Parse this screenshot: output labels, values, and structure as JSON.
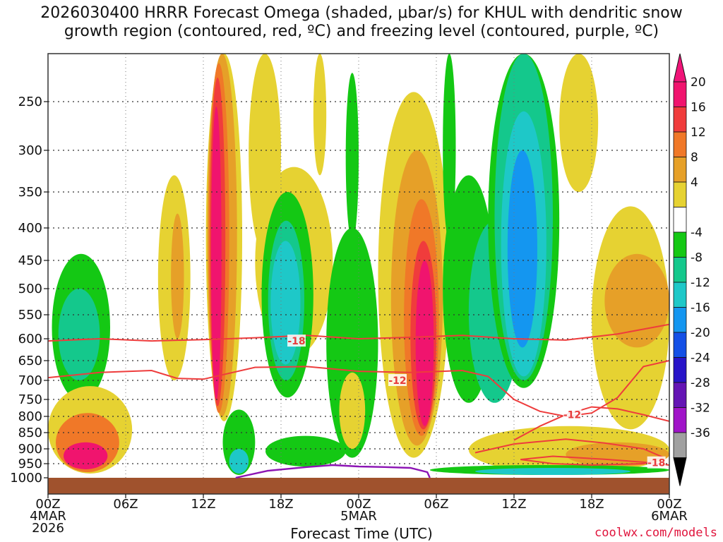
{
  "chart_data": {
    "type": "heatmap",
    "title_line1": "2026030400 HRRR Forecast Omega (shaded, μbar/s) for KHUL with dendritic snow",
    "title_line2": "growth region (contoured, red, ºC) and freezing level (contoured, purple, ºC)",
    "xlabel": "Forecast Time (UTC)",
    "credit": "coolwx.com/models",
    "x_ticks": [
      {
        "h": 0,
        "label": "00Z",
        "sub1": "4MAR",
        "sub2": "2026"
      },
      {
        "h": 6,
        "label": "06Z",
        "sub1": "",
        "sub2": ""
      },
      {
        "h": 12,
        "label": "12Z",
        "sub1": "",
        "sub2": ""
      },
      {
        "h": 18,
        "label": "18Z",
        "sub1": "",
        "sub2": ""
      },
      {
        "h": 24,
        "label": "00Z",
        "sub1": "5MAR",
        "sub2": ""
      },
      {
        "h": 30,
        "label": "06Z",
        "sub1": "",
        "sub2": ""
      },
      {
        "h": 36,
        "label": "12Z",
        "sub1": "",
        "sub2": ""
      },
      {
        "h": 42,
        "label": "18Z",
        "sub1": "",
        "sub2": ""
      },
      {
        "h": 48,
        "label": "00Z",
        "sub1": "6MAR",
        "sub2": ""
      }
    ],
    "x_range_hours": [
      0,
      48
    ],
    "y_levels_hpa": [
      250,
      300,
      350,
      400,
      450,
      500,
      550,
      600,
      650,
      700,
      750,
      800,
      850,
      900,
      950,
      1000
    ],
    "y_range_hpa": [
      200,
      1000
    ],
    "colorbar": [
      {
        "label": "20",
        "color": "#f0146e"
      },
      {
        "label": "16",
        "color": "#f03c3c"
      },
      {
        "label": "12",
        "color": "#f07828"
      },
      {
        "label": "8",
        "color": "#e6a028"
      },
      {
        "label": "4",
        "color": "#e6d232"
      },
      {
        "label": "",
        "color": "#ffffff"
      },
      {
        "label": "-4",
        "color": "#14c814"
      },
      {
        "label": "-8",
        "color": "#14c88c"
      },
      {
        "label": "-12",
        "color": "#1ec8c8"
      },
      {
        "label": "-16",
        "color": "#1496f0"
      },
      {
        "label": "-20",
        "color": "#1450e6"
      },
      {
        "label": "-24",
        "color": "#2814c8"
      },
      {
        "label": "-28",
        "color": "#6414b4"
      },
      {
        "label": "-32",
        "color": "#a014c8"
      },
      {
        "label": "-36",
        "color": "#a0a0a0"
      }
    ],
    "cb_top_color": "#f01478",
    "cb_bottom_color": "#000000",
    "ground_color": "#a0522d",
    "red_contour_color": "#ee3c3c",
    "purple_contour_color": "#8c14b4",
    "omega_cells": [
      {
        "t0": 0.3,
        "t1": 4.8,
        "p_top": 440,
        "p_bot": 755,
        "band": 6
      },
      {
        "t0": 0.8,
        "t1": 4.0,
        "p_top": 500,
        "p_bot": 700,
        "band": 7
      },
      {
        "t0": 0.0,
        "t1": 6.5,
        "p_top": 715,
        "p_bot": 985,
        "band": 4
      },
      {
        "t0": 0.6,
        "t1": 5.5,
        "p_top": 790,
        "p_bot": 980,
        "band": 2
      },
      {
        "t0": 1.2,
        "t1": 4.6,
        "p_top": 880,
        "p_bot": 970,
        "band": 0
      },
      {
        "t0": 8.5,
        "t1": 11.0,
        "p_top": 330,
        "p_bot": 700,
        "band": 4
      },
      {
        "t0": 9.5,
        "t1": 10.5,
        "p_top": 380,
        "p_bot": 600,
        "band": 3
      },
      {
        "t0": 12.2,
        "t1": 15.0,
        "p_top": 200,
        "p_bot": 815,
        "band": 4
      },
      {
        "t0": 12.3,
        "t1": 14.6,
        "p_top": 200,
        "p_bot": 800,
        "band": 3
      },
      {
        "t0": 12.4,
        "t1": 14.0,
        "p_top": 210,
        "p_bot": 790,
        "band": 2
      },
      {
        "t0": 12.5,
        "t1": 13.7,
        "p_top": 225,
        "p_bot": 770,
        "band": 1
      },
      {
        "t0": 12.6,
        "t1": 13.4,
        "p_top": 255,
        "p_bot": 750,
        "band": 0
      },
      {
        "t0": 15.5,
        "t1": 18.0,
        "p_top": 200,
        "p_bot": 440,
        "band": 4
      },
      {
        "t0": 20.5,
        "t1": 21.5,
        "p_top": 200,
        "p_bot": 330,
        "band": 4
      },
      {
        "t0": 16.0,
        "t1": 22.0,
        "p_top": 320,
        "p_bot": 640,
        "band": 4
      },
      {
        "t0": 16.5,
        "t1": 20.5,
        "p_top": 350,
        "p_bot": 745,
        "band": 6
      },
      {
        "t0": 17.0,
        "t1": 19.8,
        "p_top": 390,
        "p_bot": 700,
        "band": 7
      },
      {
        "t0": 17.2,
        "t1": 19.5,
        "p_top": 420,
        "p_bot": 660,
        "band": 8
      },
      {
        "t0": 13.5,
        "t1": 16.0,
        "p_top": 780,
        "p_bot": 990,
        "band": 6
      },
      {
        "t0": 14.0,
        "t1": 15.5,
        "p_top": 900,
        "p_bot": 985,
        "band": 8
      },
      {
        "t0": 16.8,
        "t1": 23.0,
        "p_top": 860,
        "p_bot": 960,
        "band": 6
      },
      {
        "t0": 21.5,
        "t1": 25.5,
        "p_top": 400,
        "p_bot": 930,
        "band": 6
      },
      {
        "t0": 22.5,
        "t1": 24.5,
        "p_top": 680,
        "p_bot": 900,
        "band": 4
      },
      {
        "t0": 23.0,
        "t1": 24.0,
        "p_top": 220,
        "p_bot": 420,
        "band": 6
      },
      {
        "t0": 25.5,
        "t1": 31.0,
        "p_top": 240,
        "p_bot": 930,
        "band": 4
      },
      {
        "t0": 26.5,
        "t1": 30.5,
        "p_top": 300,
        "p_bot": 890,
        "band": 3
      },
      {
        "t0": 27.5,
        "t1": 30.2,
        "p_top": 360,
        "p_bot": 860,
        "band": 2
      },
      {
        "t0": 28.0,
        "t1": 30.0,
        "p_top": 420,
        "p_bot": 840,
        "band": 1
      },
      {
        "t0": 28.4,
        "t1": 29.8,
        "p_top": 450,
        "p_bot": 830,
        "band": 0
      },
      {
        "t0": 30.5,
        "t1": 31.5,
        "p_top": 200,
        "p_bot": 420,
        "band": 6
      },
      {
        "t0": 30.5,
        "t1": 34.5,
        "p_top": 330,
        "p_bot": 760,
        "band": 6
      },
      {
        "t0": 32.5,
        "t1": 36.5,
        "p_top": 390,
        "p_bot": 760,
        "band": 7
      },
      {
        "t0": 34.0,
        "t1": 39.5,
        "p_top": 200,
        "p_bot": 720,
        "band": 6
      },
      {
        "t0": 34.5,
        "t1": 39.0,
        "p_top": 200,
        "p_bot": 700,
        "band": 7
      },
      {
        "t0": 35.0,
        "t1": 38.5,
        "p_top": 260,
        "p_bot": 690,
        "band": 8
      },
      {
        "t0": 35.5,
        "t1": 37.8,
        "p_top": 300,
        "p_bot": 620,
        "band": 9
      },
      {
        "t0": 39.5,
        "t1": 42.5,
        "p_top": 200,
        "p_bot": 350,
        "band": 4
      },
      {
        "t0": 42.0,
        "t1": 48.0,
        "p_top": 370,
        "p_bot": 840,
        "band": 4
      },
      {
        "t0": 43.0,
        "t1": 48.0,
        "p_top": 440,
        "p_bot": 620,
        "band": 3
      },
      {
        "t0": 32.5,
        "t1": 48.0,
        "p_top": 830,
        "p_bot": 985,
        "band": 4
      },
      {
        "t0": 40.0,
        "t1": 48.0,
        "p_top": 880,
        "p_bot": 960,
        "band": 3
      },
      {
        "t0": 29.5,
        "t1": 48.0,
        "p_top": 955,
        "p_bot": 990,
        "band": 6
      },
      {
        "t0": 33.0,
        "t1": 45.0,
        "p_top": 965,
        "p_bot": 990,
        "band": 8
      }
    ],
    "red_contours": [
      {
        "label": "-18",
        "label_h": 19.2,
        "label_p": 605,
        "points": [
          [
            0,
            605
          ],
          [
            4,
            600
          ],
          [
            8,
            605
          ],
          [
            12,
            602
          ],
          [
            16,
            598
          ],
          [
            20,
            593
          ],
          [
            24,
            600
          ],
          [
            28,
            597
          ],
          [
            32,
            593
          ],
          [
            36,
            600
          ],
          [
            40,
            603
          ],
          [
            44,
            590
          ],
          [
            48,
            570
          ]
        ]
      },
      {
        "label": "-12",
        "label_h": 27.0,
        "label_p": 700,
        "points": [
          [
            0,
            693
          ],
          [
            4,
            680
          ],
          [
            8,
            675
          ],
          [
            10,
            695
          ],
          [
            12,
            697
          ],
          [
            16,
            667
          ],
          [
            20,
            665
          ],
          [
            24,
            677
          ],
          [
            28,
            680
          ],
          [
            32,
            675
          ],
          [
            34,
            690
          ],
          [
            36,
            750
          ],
          [
            38,
            785
          ],
          [
            40,
            800
          ],
          [
            42,
            790
          ],
          [
            44,
            745
          ],
          [
            46,
            665
          ],
          [
            48,
            650
          ]
        ]
      },
      {
        "label": "-12",
        "label_h": 40.5,
        "label_p": 795,
        "points": [
          [
            36,
            873
          ],
          [
            38,
            830
          ],
          [
            40,
            795
          ],
          [
            42,
            772
          ],
          [
            44,
            778
          ],
          [
            46,
            795
          ],
          [
            48,
            815
          ]
        ]
      },
      {
        "label": "-18",
        "label_h": 47.0,
        "label_p": 947,
        "points": [
          [
            33,
            913
          ],
          [
            36,
            885
          ],
          [
            40,
            870
          ],
          [
            43,
            882
          ],
          [
            46,
            900
          ],
          [
            47.5,
            928
          ],
          [
            46,
            950
          ],
          [
            42,
            955
          ],
          [
            39,
            950
          ],
          [
            36.5,
            936
          ],
          [
            39,
            925
          ],
          [
            43,
            935
          ],
          [
            46,
            945
          ],
          [
            48,
            955
          ]
        ]
      }
    ],
    "purple_contour": {
      "points": [
        [
          14.5,
          1000
        ],
        [
          17,
          975
        ],
        [
          20,
          962
        ],
        [
          22,
          955
        ],
        [
          24,
          960
        ],
        [
          26,
          962
        ],
        [
          28,
          965
        ],
        [
          29.3,
          980
        ],
        [
          29.5,
          1000
        ]
      ]
    }
  }
}
